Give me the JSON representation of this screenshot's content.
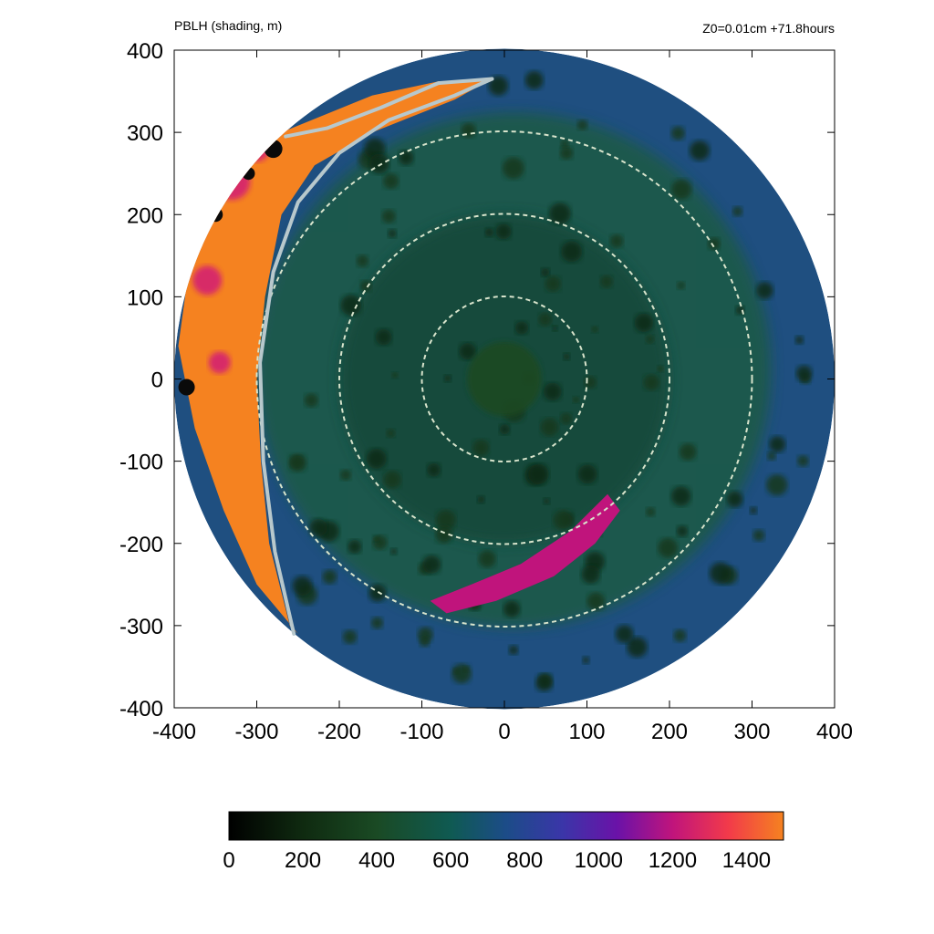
{
  "chart_data": {
    "type": "heatmap",
    "title_left": "PBLH (shading, m)",
    "title_right": "Z0=0.01cm  +71.8hours",
    "xlabel": "",
    "ylabel": "",
    "xlim": [
      -400,
      400
    ],
    "ylim": [
      -400,
      400
    ],
    "x_ticks": [
      -400,
      -300,
      -200,
      -100,
      0,
      100,
      200,
      300,
      400
    ],
    "y_ticks": [
      -400,
      -300,
      -200,
      -100,
      0,
      100,
      200,
      300,
      400
    ],
    "domain_radius": 400,
    "range_rings": [
      100,
      200,
      300
    ],
    "colorbar": {
      "min": 0,
      "max": 1500,
      "ticks": [
        0,
        200,
        400,
        600,
        800,
        1000,
        1200,
        1400
      ],
      "stops": [
        {
          "value": 0,
          "color": "#000000"
        },
        {
          "value": 200,
          "color": "#0f2a10"
        },
        {
          "value": 400,
          "color": "#1a4a24"
        },
        {
          "value": 600,
          "color": "#0f5a52"
        },
        {
          "value": 750,
          "color": "#1c4c88"
        },
        {
          "value": 900,
          "color": "#3a36a8"
        },
        {
          "value": 1050,
          "color": "#6a12a8"
        },
        {
          "value": 1200,
          "color": "#c0147c"
        },
        {
          "value": 1350,
          "color": "#f23a4a"
        },
        {
          "value": 1500,
          "color": "#f58220"
        }
      ]
    },
    "features": [
      {
        "name": "high-pblh-crescent",
        "value": 1450,
        "outline": [
          [
            -15,
            365
          ],
          [
            -60,
            340
          ],
          [
            -160,
            300
          ],
          [
            -230,
            260
          ],
          [
            -270,
            200
          ],
          [
            -290,
            100
          ],
          [
            -300,
            0
          ],
          [
            -295,
            -100
          ],
          [
            -285,
            -200
          ],
          [
            -260,
            -300
          ],
          [
            -250,
            -310
          ],
          [
            -300,
            -250
          ],
          [
            -340,
            -160
          ],
          [
            -375,
            -60
          ],
          [
            -395,
            40
          ],
          [
            -380,
            150
          ],
          [
            -330,
            260
          ],
          [
            -270,
            300
          ],
          [
            -160,
            345
          ],
          [
            -80,
            362
          ]
        ]
      },
      {
        "name": "southeast-band",
        "value": 1100,
        "outline": [
          [
            125,
            -140
          ],
          [
            80,
            -185
          ],
          [
            20,
            -225
          ],
          [
            -40,
            -250
          ],
          [
            -90,
            -270
          ],
          [
            -70,
            -285
          ],
          [
            -10,
            -270
          ],
          [
            60,
            -240
          ],
          [
            110,
            -200
          ],
          [
            140,
            -160
          ]
        ]
      },
      {
        "name": "eye",
        "value": 350,
        "center": [
          0,
          0
        ],
        "radius": 45
      }
    ],
    "front_line": [
      [
        -15,
        365
      ],
      [
        -60,
        345
      ],
      [
        -140,
        315
      ],
      [
        -200,
        275
      ],
      [
        -250,
        215
      ],
      [
        -280,
        130
      ],
      [
        -296,
        20
      ],
      [
        -292,
        -100
      ],
      [
        -278,
        -210
      ],
      [
        -255,
        -310
      ]
    ],
    "front_spur": [
      [
        -15,
        365
      ],
      [
        -80,
        360
      ],
      [
        -150,
        330
      ],
      [
        -215,
        305
      ],
      [
        -265,
        295
      ]
    ]
  }
}
